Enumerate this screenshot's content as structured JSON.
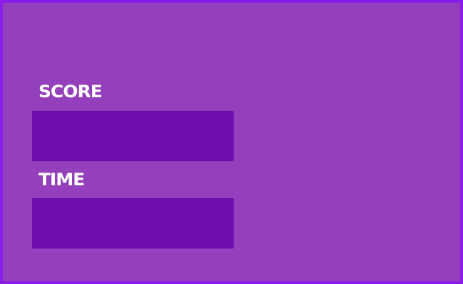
{
  "hud": {
    "score_label": "SCORE",
    "time_label": "TIME",
    "score_value": "",
    "time_value": ""
  },
  "colors": {
    "border": "#8a1ee6",
    "background": "#943fbb",
    "panel": "#6c0dac",
    "text": "#ffffff"
  }
}
